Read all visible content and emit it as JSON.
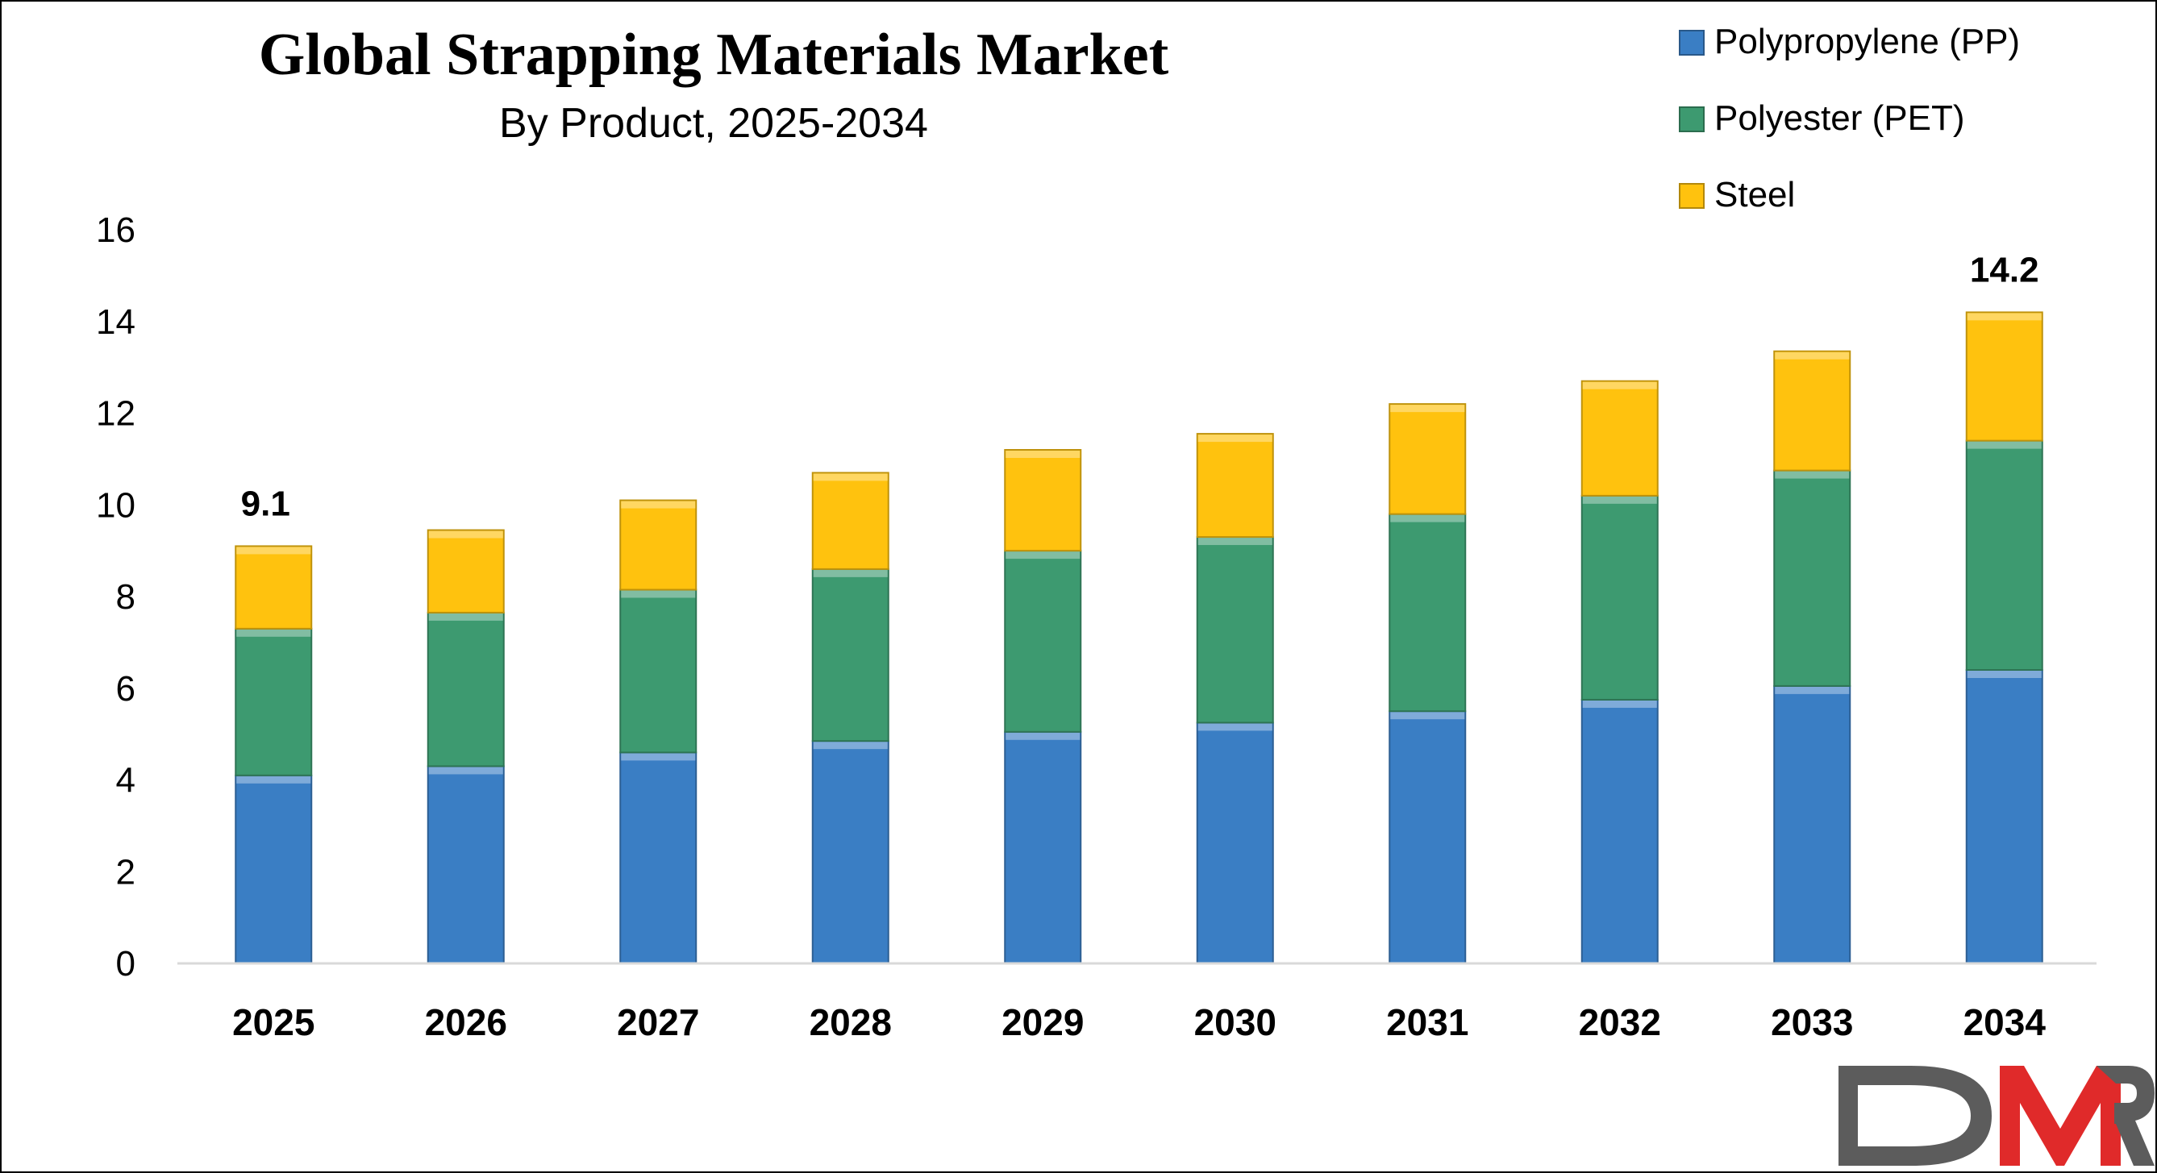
{
  "chart_data": {
    "type": "bar",
    "stacked": true,
    "title": "Global Strapping Materials Market",
    "subtitle": "By Product, 2025-2034",
    "xlabel": "",
    "ylabel": "",
    "ylim": [
      0,
      16
    ],
    "yticks": [
      "0",
      "2",
      "4",
      "6",
      "8",
      "10",
      "12",
      "14",
      "16"
    ],
    "categories": [
      "2025",
      "2026",
      "2027",
      "2028",
      "2029",
      "2030",
      "2031",
      "2032",
      "2033",
      "2034"
    ],
    "series": [
      {
        "name": "Polypropylene (PP)",
        "color": "#3a7ec4",
        "values": [
          4.1,
          4.3,
          4.6,
          4.85,
          5.05,
          5.25,
          5.5,
          5.75,
          6.05,
          6.4
        ]
      },
      {
        "name": "Polyester (PET)",
        "color": "#3d9a70",
        "values": [
          3.2,
          3.35,
          3.55,
          3.75,
          3.95,
          4.05,
          4.3,
          4.45,
          4.7,
          5.0
        ]
      },
      {
        "name": "Steel",
        "color": "#ffc20e",
        "values": [
          1.8,
          1.8,
          1.95,
          2.1,
          2.2,
          2.25,
          2.4,
          2.5,
          2.6,
          2.8
        ]
      }
    ],
    "data_labels": [
      {
        "category": "2025",
        "text": "9.1"
      },
      {
        "category": "2034",
        "text": "14.2"
      }
    ],
    "legend_position": "top-right",
    "grid": false
  },
  "logo": {
    "text": "DMR",
    "colors": [
      "#5c5c5c",
      "#e02a2a",
      "#5c5c5c"
    ]
  }
}
